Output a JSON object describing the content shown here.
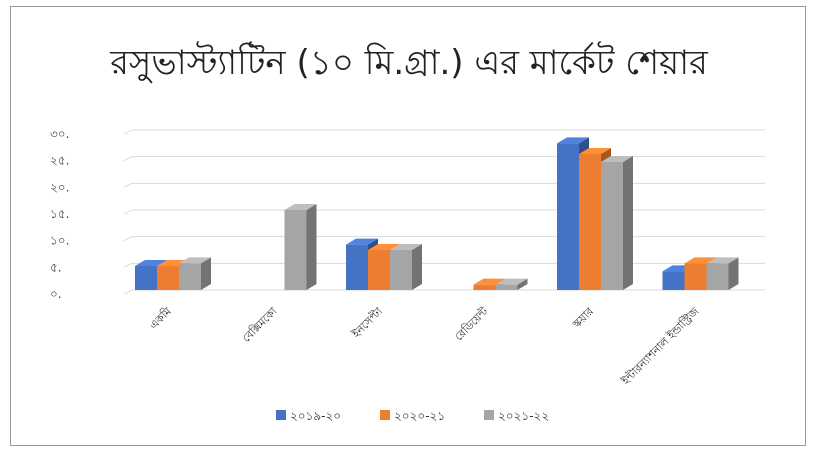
{
  "chart_data": {
    "type": "bar",
    "title": "রসুভাস্ট্যাটিন (১০ মি.গ্রা.) এর মার্কেট শেয়ার",
    "xlabel": "",
    "ylabel": "",
    "ylim": [
      0,
      30
    ],
    "yticks": [
      "০.",
      "৫.",
      "১০.",
      "১৫.",
      "২০.",
      "২৫.",
      "৩০."
    ],
    "categories": [
      "একমি",
      "বেক্সিমকো",
      "ইনসেপ্টা",
      "রেডিয়েন্ট",
      "স্কয়ার",
      "ইন্টারন্যাশনাল ইন্ডাস্ট্রিজ"
    ],
    "series": [
      {
        "name": "২০১৯-২০",
        "color": "#4472c4",
        "values": [
          4.5,
          0,
          8.5,
          0,
          27.5,
          3.5
        ]
      },
      {
        "name": "২০২০-২১",
        "color": "#ed7d31",
        "values": [
          4.5,
          0,
          7.5,
          1,
          25.5,
          5
        ]
      },
      {
        "name": "২০২১-২২",
        "color": "#a5a5a5",
        "values": [
          5,
          15,
          7.5,
          1,
          24,
          5
        ]
      }
    ],
    "grid": true,
    "legend_position": "bottom",
    "three_d": true
  }
}
